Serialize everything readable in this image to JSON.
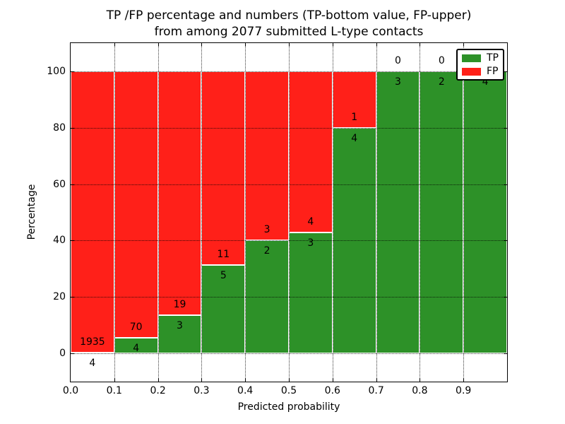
{
  "figure": {
    "title_line1": "TP /FP percentage and numbers (TP-bottom value, FP-upper)",
    "title_line2": "from among 2077 submitted L-type contacts",
    "xlabel": "Predicted probability",
    "ylabel": "Percentage"
  },
  "legend": {
    "items": [
      {
        "label": "TP",
        "color": "#2d9128"
      },
      {
        "label": "FP",
        "color": "#ff2019"
      }
    ]
  },
  "chart_data": {
    "type": "bar",
    "stacked": true,
    "normalized_to_percent": true,
    "title": "TP /FP percentage and numbers (TP-bottom value, FP-upper) from among 2077 submitted L-type contacts",
    "xlabel": "Predicted probability",
    "ylabel": "Percentage",
    "xlim": [
      0.0,
      1.0
    ],
    "ylim": [
      -10,
      110
    ],
    "grid": "dotted, drawn over bars",
    "legend_position": "upper right",
    "x_tick_labels": [
      "0.0",
      "0.1",
      "0.2",
      "0.3",
      "0.4",
      "0.5",
      "0.6",
      "0.7",
      "0.8",
      "0.9"
    ],
    "y_tick_values": [
      0,
      20,
      40,
      60,
      80,
      100
    ],
    "bin_edges": [
      0.0,
      0.1,
      0.2,
      0.3,
      0.4,
      0.5,
      0.6,
      0.7,
      0.8,
      0.9,
      1.0
    ],
    "categories": [
      "0.0-0.1",
      "0.1-0.2",
      "0.2-0.3",
      "0.3-0.4",
      "0.4-0.5",
      "0.5-0.6",
      "0.6-0.7",
      "0.7-0.8",
      "0.8-0.9",
      "0.9-1.0"
    ],
    "series": [
      {
        "name": "TP",
        "color": "#2d9128",
        "counts": [
          4,
          4,
          3,
          5,
          2,
          3,
          4,
          3,
          2,
          4
        ],
        "pct": [
          0.21,
          5.41,
          13.64,
          31.25,
          40.0,
          42.86,
          80.0,
          100.0,
          100.0,
          100.0
        ]
      },
      {
        "name": "FP",
        "color": "#ff2019",
        "counts": [
          1935,
          70,
          19,
          11,
          3,
          4,
          1,
          0,
          0,
          0
        ],
        "pct": [
          99.79,
          94.59,
          86.36,
          68.75,
          60.0,
          57.14,
          20.0,
          0.0,
          0.0,
          0.0
        ]
      }
    ],
    "bar_labels": {
      "fp": [
        "1935",
        "70",
        "19",
        "11",
        "3",
        "4",
        "1",
        "0",
        "0",
        ""
      ],
      "tp": [
        "4",
        "4",
        "3",
        "5",
        "2",
        "3",
        "4",
        "3",
        "2",
        "4"
      ],
      "note_fp_last_bin": "FP label of last bin occluded by legend"
    },
    "total_contacts": 2077
  }
}
